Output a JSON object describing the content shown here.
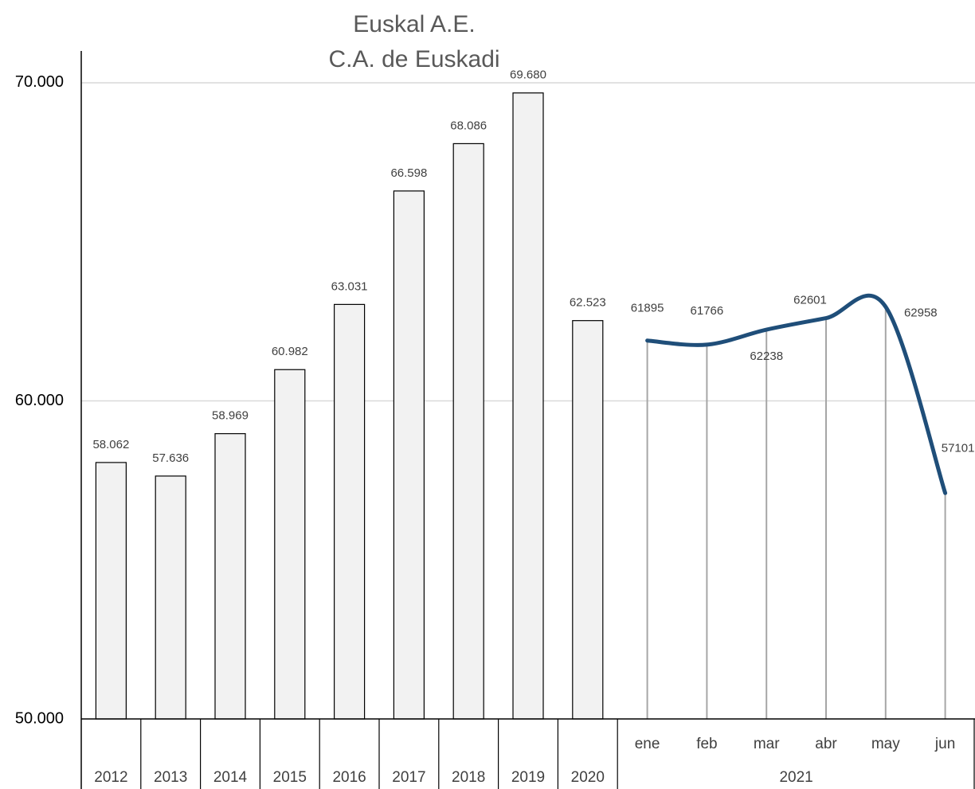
{
  "chart_data": [
    {
      "type": "bar",
      "title": "Euskal A.E.",
      "subtitle": "C.A. de Euskadi",
      "categories": [
        "2012",
        "2013",
        "2014",
        "2015",
        "2016",
        "2017",
        "2018",
        "2019",
        "2020"
      ],
      "values": [
        58062,
        57636,
        58969,
        60982,
        63031,
        66598,
        68086,
        69680,
        62523
      ],
      "value_labels": [
        "58.062",
        "57.636",
        "58.969",
        "60.982",
        "63.031",
        "66.598",
        "68.086",
        "69.680",
        "62.523"
      ],
      "color": "#f2f2f2",
      "ylim": [
        50000,
        71000
      ],
      "yticks": [
        {
          "value": 50000,
          "label": "50.000"
        },
        {
          "value": 60000,
          "label": "60.000"
        },
        {
          "value": 70000,
          "label": "70.000"
        }
      ],
      "grid": true
    },
    {
      "type": "line",
      "group": "2021",
      "categories": [
        "ene",
        "feb",
        "mar",
        "abr",
        "may",
        "jun"
      ],
      "values": [
        61895,
        61766,
        62238,
        62601,
        62958,
        57101
      ],
      "color": "#1f4e79"
    }
  ]
}
